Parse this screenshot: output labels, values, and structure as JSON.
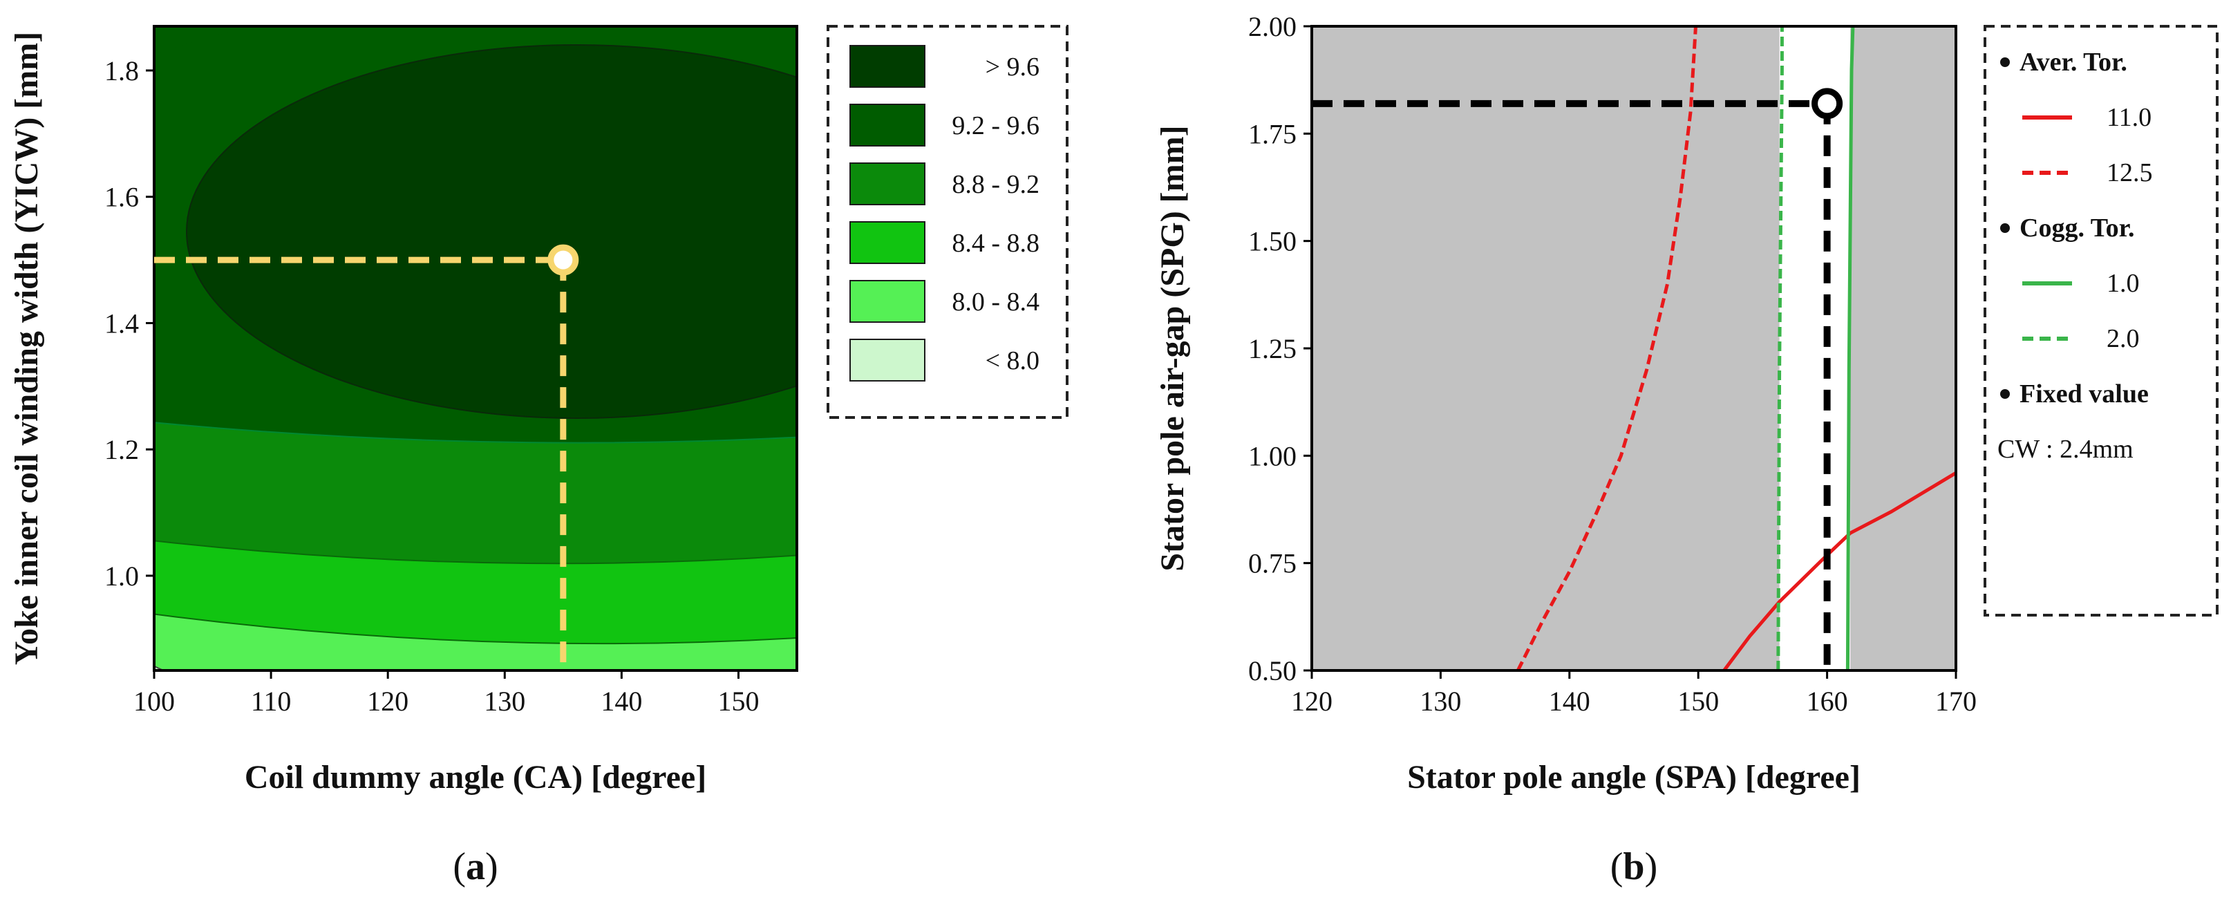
{
  "chart_data": [
    {
      "type": "contour",
      "panel_label": "a",
      "xlabel": "Coil dummy angle (CA) [degree]",
      "ylabel": "Yoke inner coil winding width (YICW) [mm]",
      "xlim": [
        100,
        155
      ],
      "ylim": [
        0.85,
        1.87
      ],
      "xticks": [
        "100",
        "110",
        "120",
        "130",
        "140",
        "150"
      ],
      "xtick_values": [
        100,
        110,
        120,
        130,
        140,
        150
      ],
      "yticks": [
        "1.0",
        "1.2",
        "1.4",
        "1.6",
        "1.8"
      ],
      "ytick_values": [
        1.0,
        1.2,
        1.4,
        1.6,
        1.8
      ],
      "legend": [
        {
          "label": "> 9.6",
          "color": "#003d00"
        },
        {
          "label": "9.2 - 9.6",
          "color": "#005c00"
        },
        {
          "label": "8.8 - 9.2",
          "color": "#0b8a0b"
        },
        {
          "label": "8.4 - 8.8",
          "color": "#11c411"
        },
        {
          "label": "8.0 - 8.4",
          "color": "#55f055"
        },
        {
          "label": "< 8.0",
          "color": "#cdf7cd"
        }
      ],
      "optimum": {
        "x": 135,
        "y": 1.5
      },
      "guide_color": "#f7d66e"
    },
    {
      "type": "contour_lines",
      "panel_label": "b",
      "xlabel": "Stator pole angle (SPA) [degree]",
      "ylabel": "Stator pole air-gap (SPG) [mm]",
      "xlim": [
        120,
        170
      ],
      "ylim": [
        0.5,
        2.0
      ],
      "xticks": [
        "120",
        "130",
        "140",
        "150",
        "160",
        "170"
      ],
      "xtick_values": [
        120,
        130,
        140,
        150,
        160,
        170
      ],
      "yticks": [
        "0.50",
        "0.75",
        "1.00",
        "1.25",
        "1.50",
        "1.75",
        "2.00"
      ],
      "ytick_values": [
        0.5,
        0.75,
        1.0,
        1.25,
        1.5,
        1.75,
        2.0
      ],
      "feasible_region": {
        "x": [
          156.3,
          161.8
        ],
        "y": [
          0.5,
          2.0
        ]
      },
      "series": [
        {
          "name": "Aver. Tor. 11.0",
          "color": "#e8191b",
          "dash": "solid",
          "points": [
            [
              152,
              0.5
            ],
            [
              154,
              0.58
            ],
            [
              156.3,
              0.66
            ],
            [
              159.7,
              0.76
            ],
            [
              161.8,
              0.82
            ],
            [
              165,
              0.87
            ],
            [
              170,
              0.96
            ]
          ]
        },
        {
          "name": "Aver. Tor. 12.5",
          "color": "#e8191b",
          "dash": "dashed",
          "points": [
            [
              136,
              0.5
            ],
            [
              138,
              0.62
            ],
            [
              140,
              0.73
            ],
            [
              142,
              0.86
            ],
            [
              144,
              1.0
            ],
            [
              146,
              1.2
            ],
            [
              147.6,
              1.4
            ],
            [
              148.6,
              1.6
            ],
            [
              149.4,
              1.8
            ],
            [
              149.8,
              2.0
            ]
          ]
        },
        {
          "name": "Cogg. Tor. 1.0",
          "color": "#3ab54a",
          "dash": "solid",
          "points": [
            [
              161.6,
              0.5
            ],
            [
              161.7,
              1.2
            ],
            [
              161.9,
              1.9
            ],
            [
              162,
              2.0
            ]
          ]
        },
        {
          "name": "Cogg. Tor. 2.0",
          "color": "#3ab54a",
          "dash": "dashed",
          "points": [
            [
              156.2,
              0.5
            ],
            [
              156.3,
              1.2
            ],
            [
              156.5,
              1.9
            ],
            [
              156.5,
              2.0
            ]
          ]
        }
      ],
      "optimum": {
        "x": 160,
        "y": 1.82
      },
      "guide_color": "#000000",
      "legend": {
        "groups": [
          {
            "title": "Aver. Tor.",
            "items": [
              {
                "label": "11.0",
                "color": "#e8191b",
                "dash": "solid"
              },
              {
                "label": "12.5",
                "color": "#e8191b",
                "dash": "dashed"
              }
            ]
          },
          {
            "title": "Cogg. Tor.",
            "items": [
              {
                "label": "1.0",
                "color": "#3ab54a",
                "dash": "solid"
              },
              {
                "label": "2.0",
                "color": "#3ab54a",
                "dash": "dashed"
              }
            ]
          },
          {
            "title": "Fixed value",
            "items": [
              {
                "label": "CW : 2.4mm"
              }
            ]
          }
        ]
      }
    }
  ]
}
